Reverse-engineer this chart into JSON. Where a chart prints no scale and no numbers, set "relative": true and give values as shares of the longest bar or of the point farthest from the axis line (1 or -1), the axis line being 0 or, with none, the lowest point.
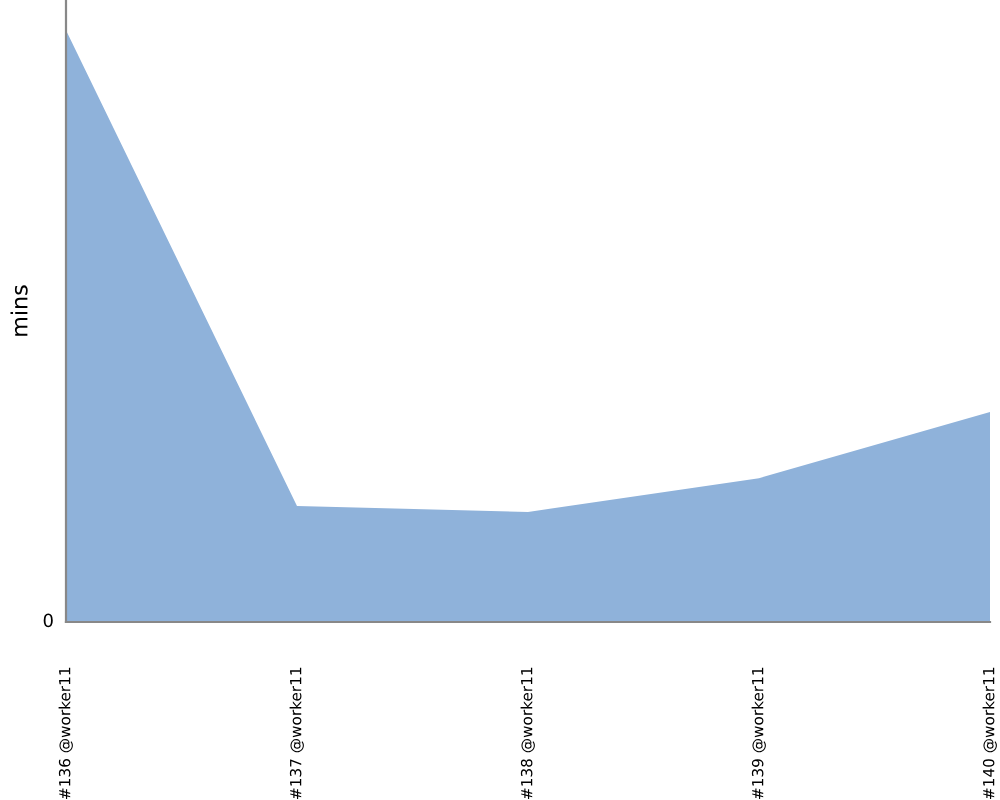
{
  "chart_data": {
    "type": "area",
    "ylabel": "mins",
    "relative": true,
    "annotations": [
      "0"
    ],
    "categories": [
      "#136 @worker11",
      "#137 @worker11",
      "#138 @worker11",
      "#139 @worker11",
      "#140 @worker11"
    ],
    "values": [
      1.0,
      0.196,
      0.186,
      0.243,
      0.355
    ],
    "color": "#8fb2da"
  }
}
